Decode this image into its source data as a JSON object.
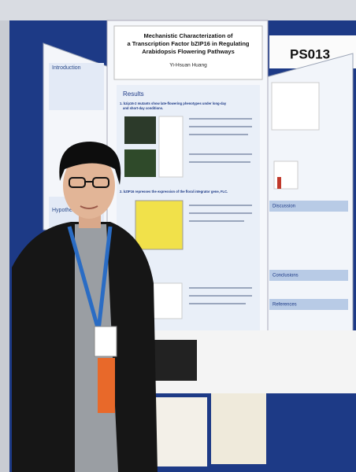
{
  "poster": {
    "board_number": "PS013",
    "title_lines": [
      "Mechanistic Characterization of",
      "a Transcription Factor bZIP16 in Regulating",
      "Arabidopsis Flowering Pathways"
    ],
    "author": "Yi-Hsuan Huang",
    "results_heading": "Results",
    "result_points": [
      "1. bzip16-2 mutants show late-flowering phenotypes under long-day",
      "and short-day conditions.",
      "2. bZIP16 represses the expression of the floral integrator gene, FLC."
    ],
    "left_sections": [
      "Introduction",
      "Hypothesis"
    ],
    "right_sections": [
      "Discussion",
      "Conclusions",
      "References"
    ]
  }
}
